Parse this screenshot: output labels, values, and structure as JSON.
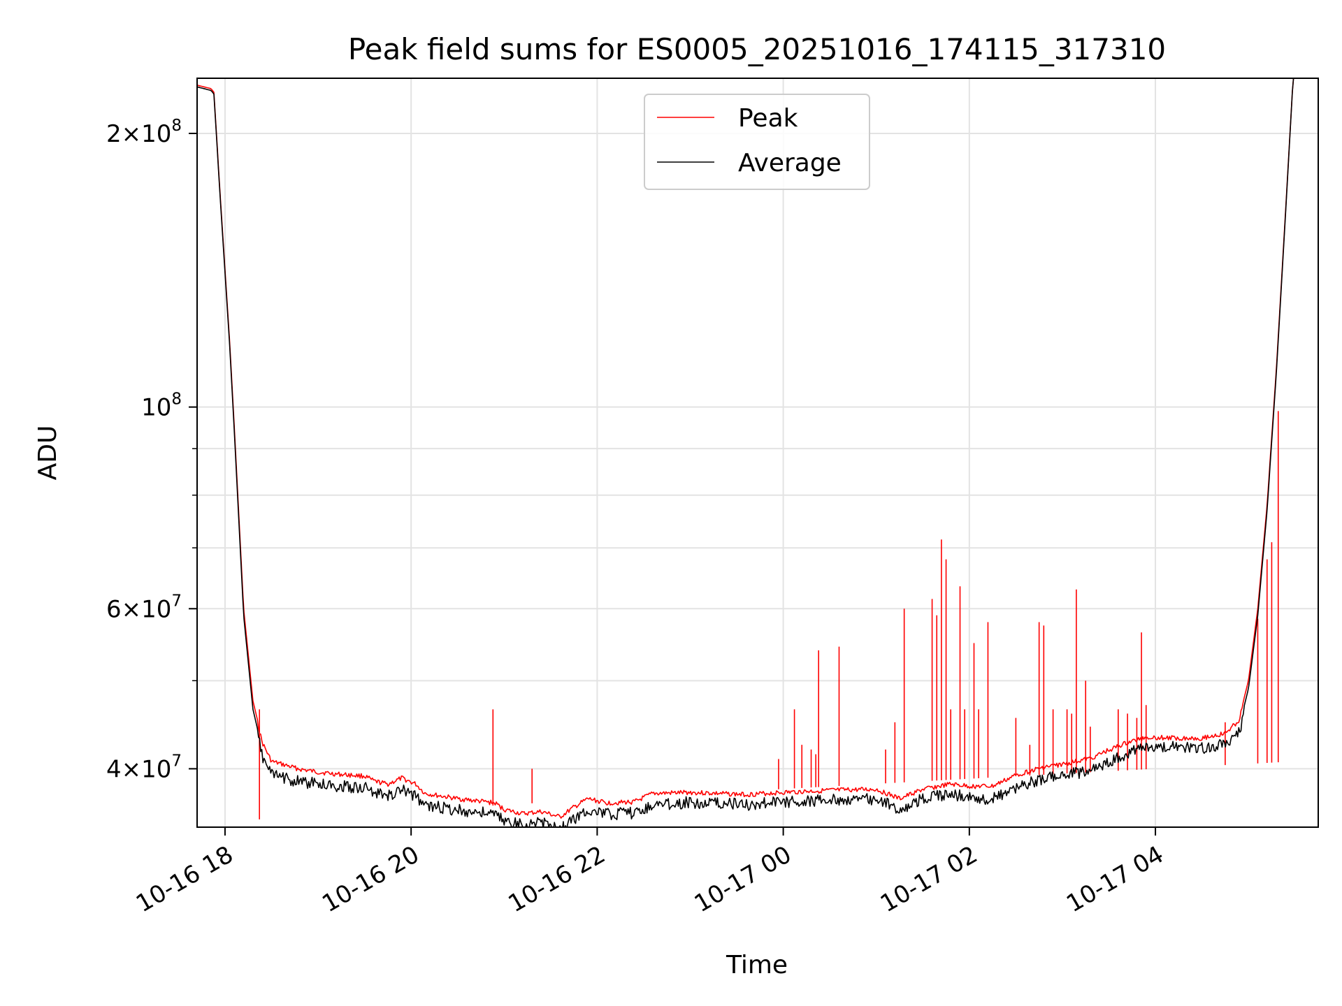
{
  "chart_data": {
    "type": "line",
    "title": "Peak field sums for ES0005_20251016_174115_317310",
    "xlabel": "Time",
    "ylabel": "ADU",
    "yscale": "log",
    "grid": true,
    "legend_position": "top-center",
    "x_range_hours": [
      -0.3,
      11.75
    ],
    "ylim": [
      34500000,
      230000000
    ],
    "xticks": [
      {
        "label": "10-16 18",
        "hours": 0
      },
      {
        "label": "10-16 20",
        "hours": 2
      },
      {
        "label": "10-16 22",
        "hours": 4
      },
      {
        "label": "10-17 00",
        "hours": 6
      },
      {
        "label": "10-17 02",
        "hours": 8
      },
      {
        "label": "10-17 04",
        "hours": 10
      }
    ],
    "yticks": [
      {
        "mant": "4",
        "exp": "7",
        "value": 40000000
      },
      {
        "mant": "6",
        "exp": "7",
        "value": 60000000
      },
      {
        "mant": "",
        "exp": "8",
        "value": 100000000
      },
      {
        "mant": "2",
        "exp": "8",
        "value": 200000000
      }
    ],
    "minor_yticks": [
      50000000,
      70000000,
      80000000,
      90000000
    ],
    "series": [
      {
        "name": "Peak",
        "color": "#ff0000",
        "points": [
          [
            -0.3,
            226000000
          ],
          [
            -0.15,
            224000000
          ],
          [
            -0.12,
            222000000
          ],
          [
            -0.05,
            170000000
          ],
          [
            0.05,
            118000000
          ],
          [
            0.1,
            95000000
          ],
          [
            0.2,
            60000000
          ],
          [
            0.3,
            47500000
          ],
          [
            0.4,
            43000000
          ],
          [
            0.5,
            41000000
          ],
          [
            0.8,
            40200000
          ],
          [
            1.0,
            39900000
          ],
          [
            1.2,
            39700000
          ],
          [
            1.5,
            39500000
          ],
          [
            1.6,
            39000000
          ],
          [
            1.75,
            38700000
          ],
          [
            1.9,
            39300000
          ],
          [
            2.05,
            38700000
          ],
          [
            2.15,
            37800000
          ],
          [
            2.5,
            37300000
          ],
          [
            2.9,
            36900000
          ],
          [
            3.0,
            36300000
          ],
          [
            3.2,
            35900000
          ],
          [
            3.4,
            36100000
          ],
          [
            3.6,
            35600000
          ],
          [
            3.75,
            36500000
          ],
          [
            3.9,
            37300000
          ],
          [
            4.1,
            36900000
          ],
          [
            4.4,
            37000000
          ],
          [
            4.6,
            37800000
          ],
          [
            5.0,
            37900000
          ],
          [
            5.6,
            37700000
          ],
          [
            6.0,
            37900000
          ],
          [
            6.5,
            38100000
          ],
          [
            7.0,
            38200000
          ],
          [
            7.25,
            37300000
          ],
          [
            7.5,
            38200000
          ],
          [
            7.8,
            38700000
          ],
          [
            8.0,
            38500000
          ],
          [
            8.25,
            38500000
          ],
          [
            8.5,
            39600000
          ],
          [
            8.8,
            40400000
          ],
          [
            9.0,
            40700000
          ],
          [
            9.3,
            41300000
          ],
          [
            9.5,
            42200000
          ],
          [
            9.7,
            43000000
          ],
          [
            9.9,
            43600000
          ],
          [
            10.2,
            43500000
          ],
          [
            10.5,
            43500000
          ],
          [
            10.75,
            44000000
          ],
          [
            10.9,
            45500000
          ],
          [
            11.0,
            50000000
          ],
          [
            11.1,
            60000000
          ],
          [
            11.2,
            78000000
          ],
          [
            11.3,
            110000000
          ],
          [
            11.4,
            165000000
          ],
          [
            11.48,
            230000000
          ],
          [
            11.75,
            230000000
          ]
        ],
        "spikes": [
          [
            0.37,
            46500000
          ],
          [
            2.88,
            46500000
          ],
          [
            3.3,
            40000000
          ],
          [
            5.95,
            41000000
          ],
          [
            6.12,
            46500000
          ],
          [
            6.2,
            42500000
          ],
          [
            6.3,
            42000000
          ],
          [
            6.35,
            41500000
          ],
          [
            6.38,
            54000000
          ],
          [
            6.6,
            54500000
          ],
          [
            7.1,
            42000000
          ],
          [
            7.2,
            45000000
          ],
          [
            7.3,
            60000000
          ],
          [
            7.6,
            61500000
          ],
          [
            7.65,
            59000000
          ],
          [
            7.7,
            71500000
          ],
          [
            7.75,
            68000000
          ],
          [
            7.8,
            46500000
          ],
          [
            7.9,
            63500000
          ],
          [
            7.95,
            46500000
          ],
          [
            8.05,
            55000000
          ],
          [
            8.1,
            46500000
          ],
          [
            8.2,
            58000000
          ],
          [
            8.5,
            45500000
          ],
          [
            8.65,
            42500000
          ],
          [
            8.75,
            58000000
          ],
          [
            8.8,
            57500000
          ],
          [
            8.9,
            46500000
          ],
          [
            9.05,
            46500000
          ],
          [
            9.1,
            46000000
          ],
          [
            9.15,
            63000000
          ],
          [
            9.25,
            50000000
          ],
          [
            9.3,
            44500000
          ],
          [
            9.6,
            46500000
          ],
          [
            9.7,
            46000000
          ],
          [
            9.8,
            45500000
          ],
          [
            9.85,
            56500000
          ],
          [
            9.9,
            47000000
          ],
          [
            10.75,
            45000000
          ],
          [
            11.1,
            58500000
          ],
          [
            11.2,
            68000000
          ],
          [
            11.25,
            71000000
          ],
          [
            11.32,
            99000000
          ]
        ]
      },
      {
        "name": "Average",
        "color": "#000000",
        "points": [
          [
            -0.3,
            225000000
          ],
          [
            -0.15,
            223000000
          ],
          [
            -0.12,
            221000000
          ],
          [
            -0.05,
            169000000
          ],
          [
            0.05,
            117000000
          ],
          [
            0.1,
            94000000
          ],
          [
            0.2,
            59000000
          ],
          [
            0.3,
            46500000
          ],
          [
            0.4,
            42000000
          ],
          [
            0.5,
            40000000
          ],
          [
            0.8,
            39300000
          ],
          [
            1.0,
            39100000
          ],
          [
            1.2,
            38900000
          ],
          [
            1.5,
            38700000
          ],
          [
            1.6,
            38200000
          ],
          [
            1.75,
            37900000
          ],
          [
            1.9,
            38500000
          ],
          [
            2.05,
            37900000
          ],
          [
            2.15,
            37000000
          ],
          [
            2.5,
            36600000
          ],
          [
            2.9,
            36200000
          ],
          [
            3.0,
            35600000
          ],
          [
            3.2,
            35200000
          ],
          [
            3.4,
            35400000
          ],
          [
            3.6,
            34900000
          ],
          [
            3.75,
            35800000
          ],
          [
            3.9,
            36600000
          ],
          [
            4.1,
            36200000
          ],
          [
            4.4,
            36300000
          ],
          [
            4.6,
            37100000
          ],
          [
            5.0,
            37300000
          ],
          [
            5.6,
            37100000
          ],
          [
            6.0,
            37300000
          ],
          [
            6.5,
            37500000
          ],
          [
            7.0,
            37600000
          ],
          [
            7.25,
            36700000
          ],
          [
            7.5,
            37600000
          ],
          [
            7.8,
            38100000
          ],
          [
            8.0,
            37800000
          ],
          [
            8.25,
            37600000
          ],
          [
            8.5,
            38700000
          ],
          [
            8.8,
            39600000
          ],
          [
            9.0,
            39900000
          ],
          [
            9.3,
            40400000
          ],
          [
            9.5,
            41300000
          ],
          [
            9.7,
            42200000
          ],
          [
            9.9,
            42900000
          ],
          [
            10.2,
            42900000
          ],
          [
            10.5,
            42800000
          ],
          [
            10.75,
            43200000
          ],
          [
            10.9,
            44500000
          ],
          [
            11.0,
            49000000
          ],
          [
            11.1,
            59000000
          ],
          [
            11.2,
            77000000
          ],
          [
            11.3,
            109000000
          ],
          [
            11.4,
            164000000
          ],
          [
            11.48,
            230000000
          ],
          [
            11.75,
            230000000
          ]
        ]
      }
    ]
  }
}
